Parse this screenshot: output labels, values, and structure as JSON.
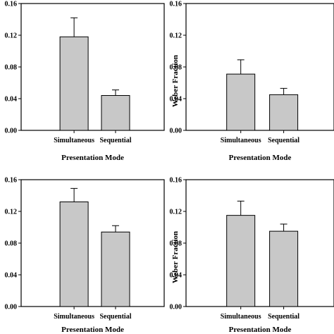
{
  "chart_data": [
    {
      "type": "bar",
      "categories": [
        "Simultaneous",
        "Sequential"
      ],
      "values": [
        0.118,
        0.044
      ],
      "errors": [
        0.024,
        0.007
      ],
      "xlabel": "Presentation Mode",
      "ylabel": "",
      "ylim": [
        0,
        0.16
      ],
      "yticks": [
        "0.00",
        "0.04",
        "0.08",
        "0.12",
        "0.16"
      ],
      "bar_color": "#c8c8c8",
      "grid": false
    },
    {
      "type": "bar",
      "categories": [
        "Simultaneous",
        "Sequential"
      ],
      "values": [
        0.071,
        0.045
      ],
      "errors": [
        0.018,
        0.008
      ],
      "xlabel": "Presentation Mode",
      "ylabel": "Weber Fraction",
      "ylim": [
        0,
        0.16
      ],
      "yticks": [
        "0.00",
        "0.04",
        "0.08",
        "0.12",
        "0.16"
      ],
      "bar_color": "#c8c8c8",
      "grid": false
    },
    {
      "type": "bar",
      "categories": [
        "Simultaneous",
        "Sequential"
      ],
      "values": [
        0.132,
        0.094
      ],
      "errors": [
        0.017,
        0.008
      ],
      "xlabel": "Presentation Mode",
      "ylabel": "",
      "ylim": [
        0,
        0.16
      ],
      "yticks": [
        "0.00",
        "0.04",
        "0.08",
        "0.12",
        "0.16"
      ],
      "bar_color": "#c8c8c8",
      "grid": false
    },
    {
      "type": "bar",
      "categories": [
        "Simultaneous",
        "Sequential"
      ],
      "values": [
        0.115,
        0.095
      ],
      "errors": [
        0.018,
        0.009
      ],
      "xlabel": "Presentation Mode",
      "ylabel": "Weber Fraction",
      "ylim": [
        0,
        0.16
      ],
      "yticks": [
        "0.00",
        "0.04",
        "0.08",
        "0.12",
        "0.16"
      ],
      "bar_color": "#c8c8c8",
      "grid": false
    }
  ]
}
